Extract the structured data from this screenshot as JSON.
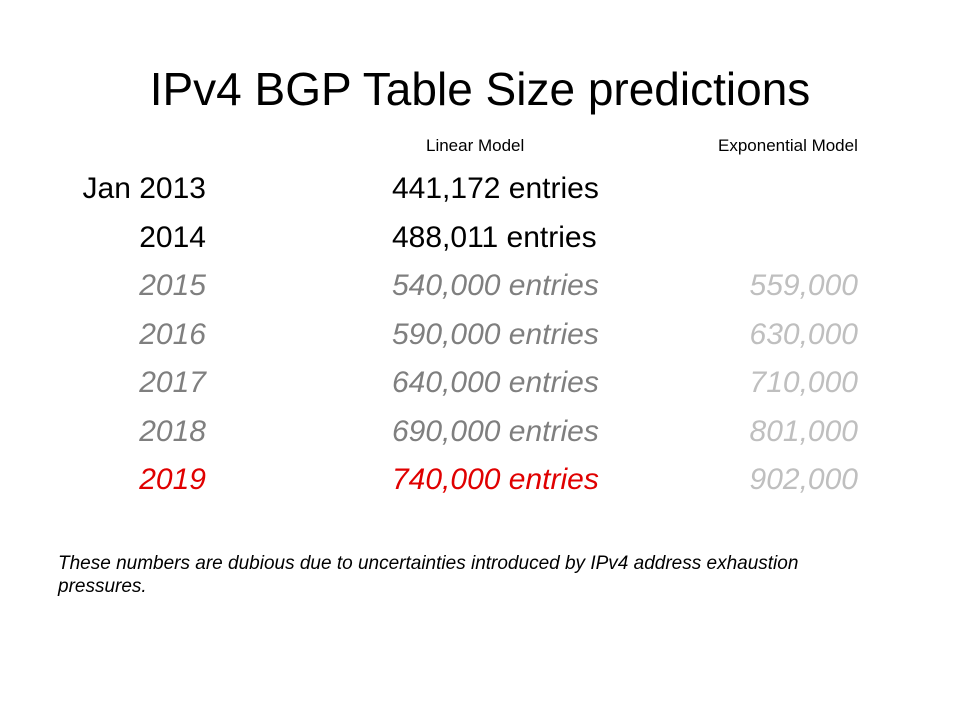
{
  "title": "IPv4 BGP Table Size predictions",
  "columns": [
    "Linear Model",
    "Exponential Model"
  ],
  "rows": [
    {
      "year": "Jan 2013",
      "linear": "441,172 entries"
    },
    {
      "year": "2014",
      "linear": "488,011 entries"
    },
    {
      "year": "2015",
      "linear": "540,000 entries",
      "exponential": "559,000"
    },
    {
      "year": "2016",
      "linear": "590,000 entries",
      "exponential": "630,000"
    },
    {
      "year": "2017",
      "linear": "640,000 entries",
      "exponential": "710,000"
    },
    {
      "year": "2018",
      "linear": "690,000 entries",
      "exponential": "801,000"
    },
    {
      "year": "2019",
      "linear": "740,000 entries",
      "exponential": "902,000"
    }
  ],
  "note": "These numbers are dubious due to uncertainties introduced by IPv4 address exhaustion pressures."
}
